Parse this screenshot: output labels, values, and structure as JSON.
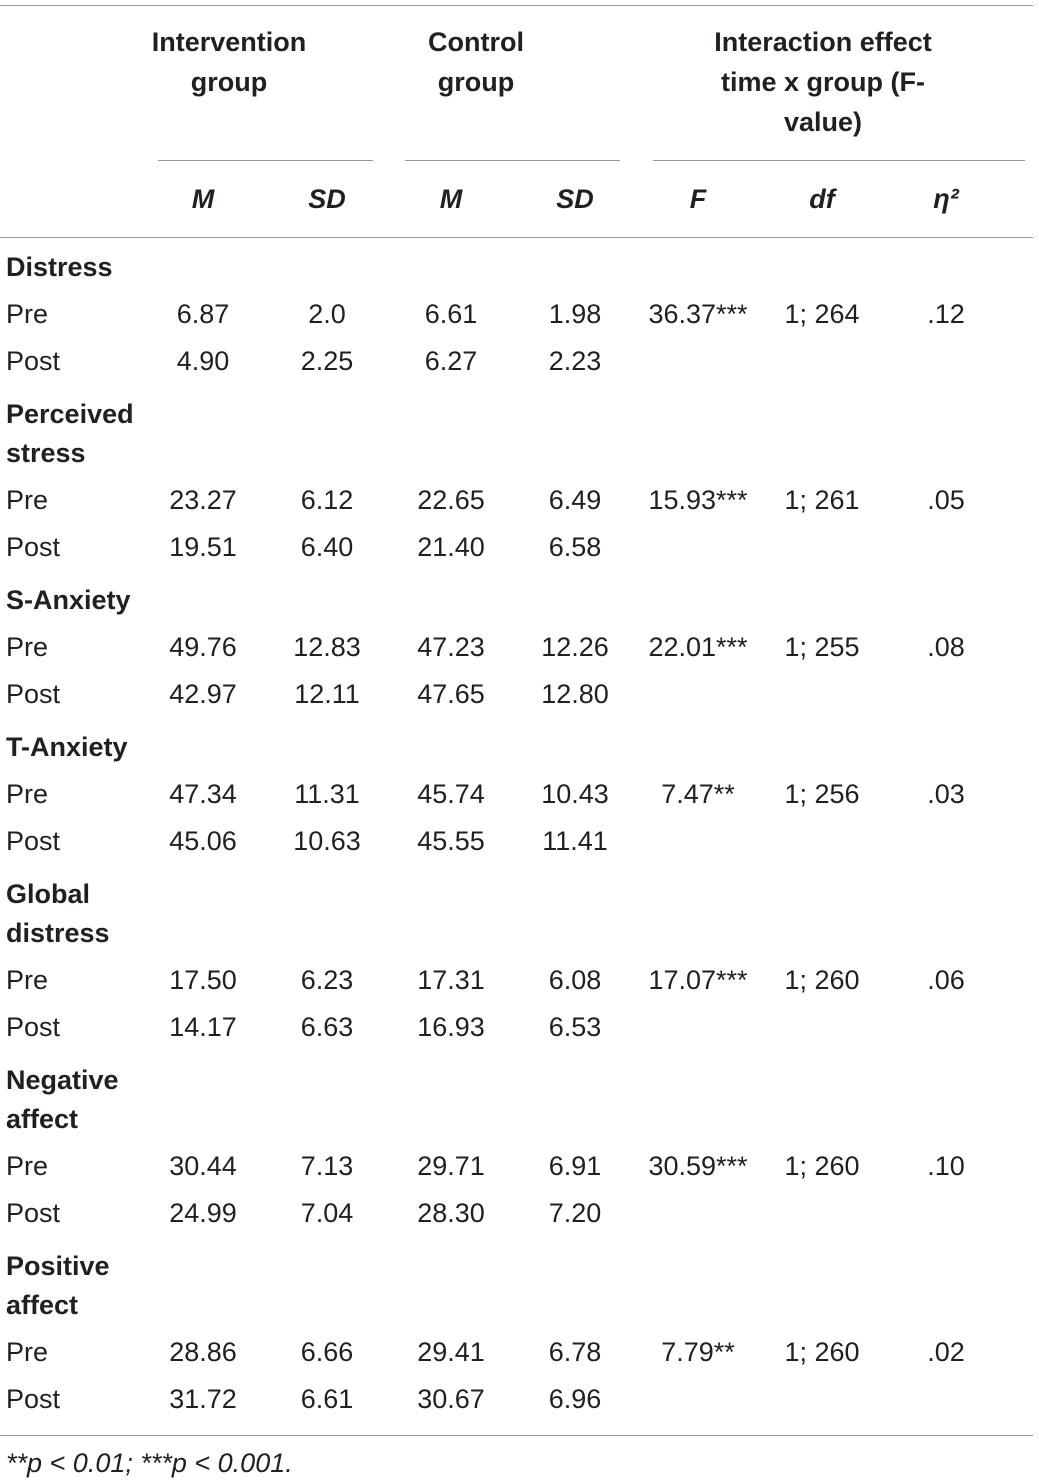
{
  "table": {
    "group_headers": [
      "Intervention group",
      "Control group",
      "Interaction effect time x group (F-value)"
    ],
    "subheaders": [
      "M",
      "SD",
      "M",
      "SD",
      "F",
      "df",
      "η²"
    ],
    "sections": [
      {
        "name": "Distress",
        "rows": [
          [
            "Pre",
            "6.87",
            "2.0",
            "6.61",
            "1.98",
            "36.37***",
            "1; 264",
            ".12"
          ],
          [
            "Post",
            "4.90",
            "2.25",
            "6.27",
            "2.23"
          ]
        ]
      },
      {
        "name": "Perceived stress",
        "rows": [
          [
            "Pre",
            "23.27",
            "6.12",
            "22.65",
            "6.49",
            "15.93***",
            "1; 261",
            ".05"
          ],
          [
            "Post",
            "19.51",
            "6.40",
            "21.40",
            "6.58"
          ]
        ]
      },
      {
        "name": "S-Anxiety",
        "rows": [
          [
            "Pre",
            "49.76",
            "12.83",
            "47.23",
            "12.26",
            "22.01***",
            "1; 255",
            ".08"
          ],
          [
            "Post",
            "42.97",
            "12.11",
            "47.65",
            "12.80"
          ]
        ]
      },
      {
        "name": "T-Anxiety",
        "rows": [
          [
            "Pre",
            "47.34",
            "11.31",
            "45.74",
            "10.43",
            "7.47**",
            "1; 256",
            ".03"
          ],
          [
            "Post",
            "45.06",
            "10.63",
            "45.55",
            "11.41"
          ]
        ]
      },
      {
        "name": "Global distress",
        "rows": [
          [
            "Pre",
            "17.50",
            "6.23",
            "17.31",
            "6.08",
            "17.07***",
            "1; 260",
            ".06"
          ],
          [
            "Post",
            "14.17",
            "6.63",
            "16.93",
            "6.53"
          ]
        ]
      },
      {
        "name": "Negative affect",
        "rows": [
          [
            "Pre",
            "30.44",
            "7.13",
            "29.71",
            "6.91",
            "30.59***",
            "1; 260",
            ".10"
          ],
          [
            "Post",
            "24.99",
            "7.04",
            "28.30",
            "7.20"
          ]
        ]
      },
      {
        "name": "Positive affect",
        "rows": [
          [
            "Pre",
            "28.86",
            "6.66",
            "29.41",
            "6.78",
            "7.79**",
            "1; 260",
            ".02"
          ],
          [
            "Post",
            "31.72",
            "6.61",
            "30.67",
            "6.96"
          ]
        ]
      }
    ],
    "footnote": "**p < 0.01; ***p < 0.001."
  }
}
